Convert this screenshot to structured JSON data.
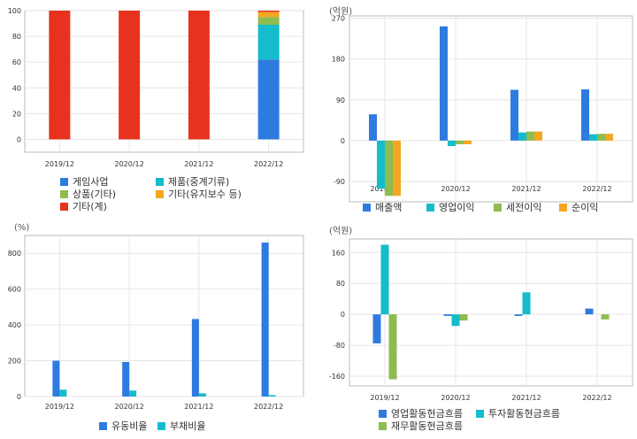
{
  "colors": {
    "blue": "#2e7be0",
    "cyan": "#14bccc",
    "green": "#8cbd4e",
    "orange": "#f4a623",
    "red": "#e8321f",
    "grid": "#e6e6e6",
    "frame": "#bbbbbb"
  },
  "chart_data": [
    {
      "type": "bar",
      "stacked": true,
      "categories": [
        "2019/12",
        "2020/12",
        "2021/12",
        "2022/12"
      ],
      "ylim": [
        -10,
        100
      ],
      "yticks": [
        "0",
        "20",
        "40",
        "60",
        "80",
        "100"
      ],
      "unit": "",
      "series": [
        {
          "name": "게임사업",
          "values": [
            0,
            0,
            0,
            62
          ],
          "color": "#2e7be0"
        },
        {
          "name": "제품(중계기류)",
          "values": [
            0,
            0,
            0,
            27
          ],
          "color": "#14bccc"
        },
        {
          "name": "상품(기타)",
          "values": [
            0,
            0,
            0,
            6
          ],
          "color": "#8cbd4e"
        },
        {
          "name": "기타(유지보수 등)",
          "values": [
            0,
            0,
            0,
            4
          ],
          "color": "#f4a623"
        },
        {
          "name": "기타(계)",
          "values": [
            100,
            100,
            100,
            1
          ],
          "color": "#e8321f"
        }
      ],
      "legend_position": "bottom",
      "grid": true
    },
    {
      "type": "bar",
      "categories": [
        "2019/12",
        "2020/12",
        "2021/12",
        "2022/12"
      ],
      "ylim": [
        -135,
        275
      ],
      "yticks": [
        "270",
        "180",
        "90",
        "0",
        "-90"
      ],
      "unit": "(억원)",
      "series": [
        {
          "name": "매출액",
          "values": [
            58,
            252,
            112,
            113
          ],
          "color": "#2e7be0"
        },
        {
          "name": "영업이익",
          "values": [
            -106,
            -12,
            18,
            14
          ],
          "color": "#14bccc"
        },
        {
          "name": "세전이익",
          "values": [
            -122,
            -8,
            20,
            15
          ],
          "color": "#8cbd4e"
        },
        {
          "name": "순이익",
          "values": [
            -122,
            -8,
            20,
            15
          ],
          "color": "#f4a623"
        }
      ],
      "legend_position": "bottom",
      "grid": true
    },
    {
      "type": "bar",
      "categories": [
        "2019/12",
        "2020/12",
        "2021/12",
        "2022/12"
      ],
      "ylim": [
        0,
        900
      ],
      "yticks": [
        "0",
        "200",
        "400",
        "600",
        "800"
      ],
      "unit": "(%)",
      "series": [
        {
          "name": "유동비율",
          "values": [
            200,
            193,
            433,
            860
          ],
          "color": "#2e7be0"
        },
        {
          "name": "부채비율",
          "values": [
            38,
            33,
            18,
            8
          ],
          "color": "#14bccc"
        }
      ],
      "legend_position": "bottom",
      "grid": true
    },
    {
      "type": "bar",
      "categories": [
        "2019/12",
        "2020/12",
        "2021/12",
        "2022/12"
      ],
      "ylim": [
        -185,
        195
      ],
      "yticks": [
        "160",
        "80",
        "0",
        "-80",
        "-160"
      ],
      "unit": "(억원)",
      "series": [
        {
          "name": "영업활동현금흐름",
          "values": [
            -75,
            -4,
            -4,
            15
          ],
          "color": "#2e7be0"
        },
        {
          "name": "투자활동현금흐름",
          "values": [
            180,
            -30,
            57,
            0
          ],
          "color": "#14bccc"
        },
        {
          "name": "재무활동현금흐름",
          "values": [
            -168,
            -16,
            0,
            -13
          ],
          "color": "#8cbd4e"
        }
      ],
      "legend_position": "bottom",
      "grid": true
    }
  ]
}
